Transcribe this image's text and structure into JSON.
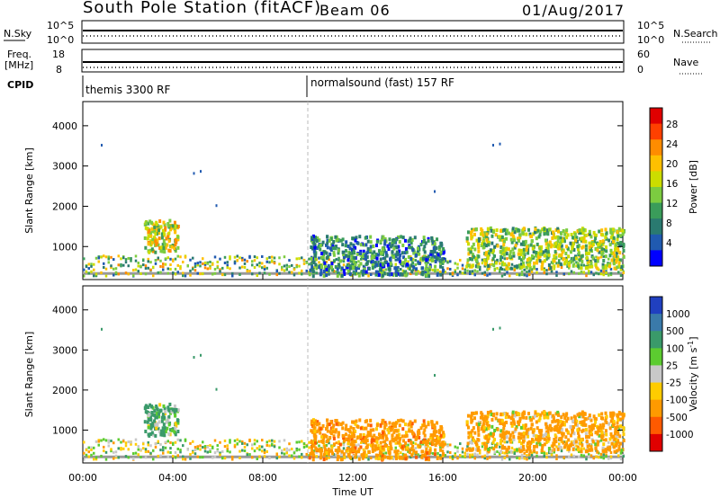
{
  "header": {
    "station": "South Pole Station (fitACF)",
    "beam": "Beam 06",
    "date": "01/Aug/2017"
  },
  "panels": {
    "nsky_label": "N.Sky",
    "nsky_ticks": [
      "10^5",
      "10^0"
    ],
    "nsearch_label": "N.Search",
    "nsearch_ticks": [
      "10^5",
      "10^0"
    ],
    "freq_label_1": "Freq.",
    "freq_label_2": "[MHz]",
    "freq_ticks": [
      "18",
      "8"
    ],
    "nave_label": "Nave",
    "nave_ticks": [
      "60",
      "0"
    ],
    "cpid_label": "CPID",
    "cpid_1": "themis 3300 RF",
    "cpid_2": "normalsound (fast) 157 RF"
  },
  "chart_data": [
    {
      "type": "heatmap",
      "panel": "power",
      "ylabel": "Slant Range [km]",
      "ylim": [
        180,
        4600
      ],
      "yticks": [
        1000,
        2000,
        3000,
        4000
      ],
      "xlim": [
        0,
        24
      ],
      "colorbar": {
        "label": "Power [dB]",
        "ticks": [
          "28",
          "24",
          "20",
          "16",
          "12",
          "8",
          "4"
        ],
        "colors": [
          "#e00000",
          "#ff4000",
          "#ff8c00",
          "#ffc000",
          "#ccdd00",
          "#7ccc40",
          "#3a9c5a",
          "#2a7a70",
          "#205ab0",
          "#0000ff"
        ]
      },
      "regions": [
        {
          "t0": 2.7,
          "t1": 4.2,
          "r0": 900,
          "r1": 1700,
          "level": 24
        },
        {
          "t0": 10.0,
          "t1": 16.0,
          "r0": 300,
          "r1": 1300,
          "level": 16
        },
        {
          "t0": 17.0,
          "t1": 24.0,
          "r0": 500,
          "r1": 1500,
          "level": 22
        }
      ]
    },
    {
      "type": "heatmap",
      "panel": "velocity",
      "ylabel": "Slant Range [km]",
      "xlabel": "Time UT",
      "ylim": [
        180,
        4600
      ],
      "yticks": [
        1000,
        2000,
        3000,
        4000
      ],
      "xlim": [
        0,
        24
      ],
      "xticks": [
        "00:00",
        "04:00",
        "08:00",
        "12:00",
        "16:00",
        "20:00",
        "00:00"
      ],
      "colorbar": {
        "label": "Velocity [m s",
        "label_sup": "-1",
        "label_end": "]",
        "ticks": [
          "1000",
          "500",
          "100",
          "25",
          "-25",
          "-100",
          "-500",
          "-1000"
        ],
        "colors": [
          "#2040c0",
          "#3a7aaa",
          "#3a9a6a",
          "#5ccc30",
          "#c8c8c8",
          "#ffcc00",
          "#ff9a00",
          "#ff5a00",
          "#e00000"
        ]
      },
      "regions": [
        {
          "t0": 2.7,
          "t1": 4.2,
          "r0": 900,
          "r1": 1700,
          "level": 200
        },
        {
          "t0": 10.0,
          "t1": 16.0,
          "r0": 300,
          "r1": 1300,
          "level": -300
        },
        {
          "t0": 17.0,
          "t1": 24.0,
          "r0": 500,
          "r1": 1500,
          "level": -200
        }
      ]
    }
  ]
}
